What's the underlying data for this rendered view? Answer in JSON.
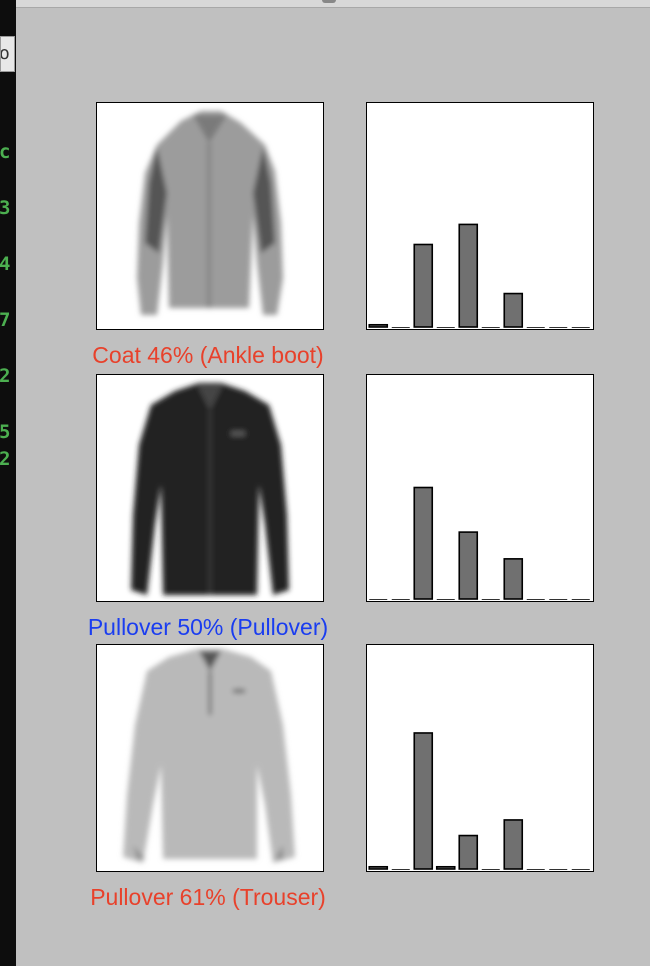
{
  "terminal": {
    "input_fragment": "o",
    "fragments": [
      "c",
      "3",
      "4",
      "7",
      "2",
      "5",
      "2"
    ]
  },
  "colors": {
    "background": "#c0c0c0",
    "bar_fill": "#707070",
    "wrong_prediction": "#e8412b",
    "correct_prediction": "#1a3df0"
  },
  "panels": [
    {
      "image": "coat-icon",
      "caption": "Coat 46% (Ankle boot)",
      "correct": false,
      "garment": {
        "tone": "#9c9c9c",
        "shade": "#555555",
        "style": "coat"
      }
    },
    {
      "image": "pullover-icon",
      "caption": "Pullover 50% (Pullover)",
      "correct": true,
      "garment": {
        "tone": "#202020",
        "shade": "#0a0a0a",
        "style": "pullover"
      }
    },
    {
      "image": "shirt-icon",
      "caption": "Pullover 61% (Trouser)",
      "correct": false,
      "garment": {
        "tone": "#b9b9b9",
        "shade": "#8c8c8c",
        "style": "shirt"
      }
    }
  ],
  "chart_data": [
    {
      "type": "bar",
      "categories": [
        0,
        1,
        2,
        3,
        4,
        5,
        6,
        7,
        8,
        9
      ],
      "values": [
        0.01,
        0.0,
        0.37,
        0.0,
        0.46,
        0.0,
        0.15,
        0.0,
        0.0,
        0.0
      ],
      "ylim": [
        0,
        1
      ],
      "xticks": false,
      "yticks": false
    },
    {
      "type": "bar",
      "categories": [
        0,
        1,
        2,
        3,
        4,
        5,
        6,
        7,
        8,
        9
      ],
      "values": [
        0.0,
        0.0,
        0.5,
        0.0,
        0.3,
        0.0,
        0.18,
        0.0,
        0.0,
        0.0
      ],
      "ylim": [
        0,
        1
      ],
      "xticks": false,
      "yticks": false
    },
    {
      "type": "bar",
      "categories": [
        0,
        1,
        2,
        3,
        4,
        5,
        6,
        7,
        8,
        9
      ],
      "values": [
        0.01,
        0.0,
        0.61,
        0.01,
        0.15,
        0.0,
        0.22,
        0.0,
        0.0,
        0.0
      ],
      "ylim": [
        0,
        1
      ],
      "xticks": false,
      "yticks": false
    }
  ]
}
